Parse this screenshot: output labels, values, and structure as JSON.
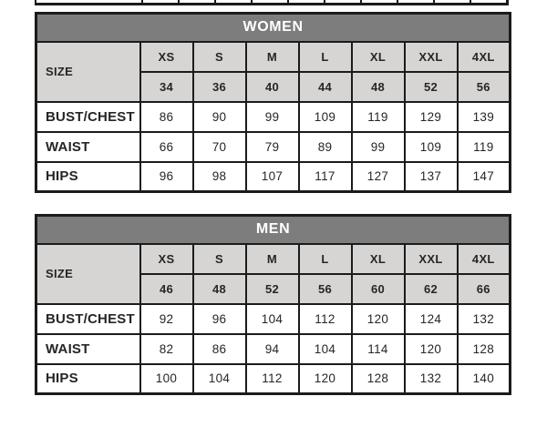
{
  "colors": {
    "header_bg": "#7d7d7d",
    "header_text": "#ffffff",
    "subheader_bg": "#d6d5d3",
    "border": "#1b1b1b",
    "text": "#262626"
  },
  "tables": [
    {
      "title": "WOMEN",
      "size_label": "SIZE",
      "size_codes": [
        "XS",
        "S",
        "M",
        "L",
        "XL",
        "XXL",
        "4XL"
      ],
      "size_numbers": [
        "34",
        "36",
        "40",
        "44",
        "48",
        "52",
        "56"
      ],
      "rows": [
        {
          "label": "BUST/CHEST",
          "values": [
            "86",
            "90",
            "99",
            "109",
            "119",
            "129",
            "139"
          ]
        },
        {
          "label": "WAIST",
          "values": [
            "66",
            "70",
            "79",
            "89",
            "99",
            "109",
            "119"
          ]
        },
        {
          "label": "HIPS",
          "values": [
            "96",
            "98",
            "107",
            "117",
            "127",
            "137",
            "147"
          ]
        }
      ]
    },
    {
      "title": "MEN",
      "size_label": "SIZE",
      "size_codes": [
        "XS",
        "S",
        "M",
        "L",
        "XL",
        "XXL",
        "4XL"
      ],
      "size_numbers": [
        "46",
        "48",
        "52",
        "56",
        "60",
        "62",
        "66"
      ],
      "rows": [
        {
          "label": "BUST/CHEST",
          "values": [
            "92",
            "96",
            "104",
            "112",
            "120",
            "124",
            "132"
          ]
        },
        {
          "label": "WAIST",
          "values": [
            "82",
            "86",
            "94",
            "104",
            "114",
            "120",
            "128"
          ]
        },
        {
          "label": "HIPS",
          "values": [
            "100",
            "104",
            "112",
            "120",
            "128",
            "132",
            "140"
          ]
        }
      ]
    }
  ]
}
